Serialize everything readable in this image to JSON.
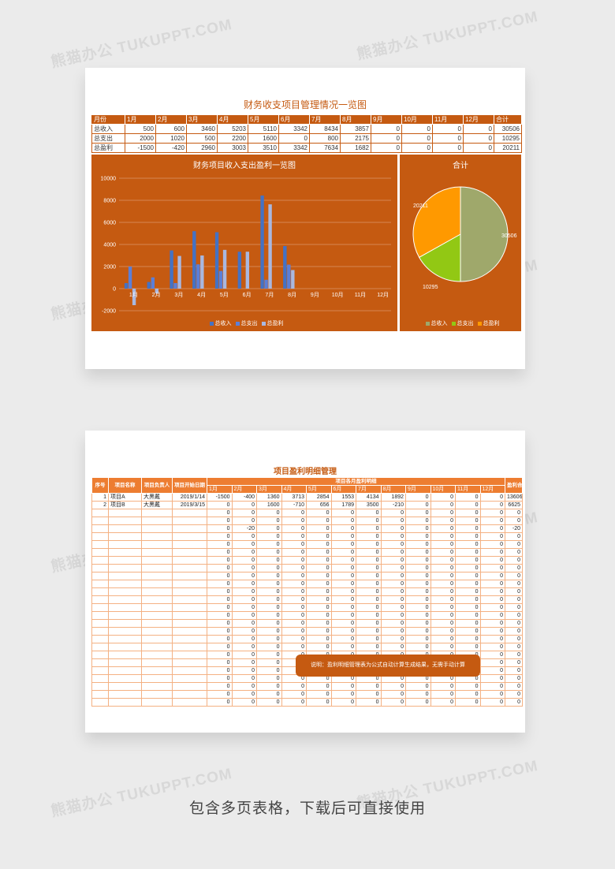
{
  "sheet1": {
    "title": "财务收支项目管理情况一览图",
    "header": [
      "月份",
      "1月",
      "2月",
      "3月",
      "4月",
      "5月",
      "6月",
      "7月",
      "8月",
      "9月",
      "10月",
      "11月",
      "12月",
      "合计"
    ],
    "rows": [
      {
        "label": "总收入",
        "values": [
          "500",
          "600",
          "3460",
          "5203",
          "5110",
          "3342",
          "8434",
          "3857",
          "0",
          "0",
          "0",
          "0",
          "30506"
        ]
      },
      {
        "label": "总支出",
        "values": [
          "2000",
          "1020",
          "500",
          "2200",
          "1600",
          "0",
          "800",
          "2175",
          "0",
          "0",
          "0",
          "0",
          "10295"
        ]
      },
      {
        "label": "总盈利",
        "values": [
          "-1500",
          "-420",
          "2960",
          "3003",
          "3510",
          "3342",
          "7634",
          "1682",
          "0",
          "0",
          "0",
          "0",
          "20211"
        ]
      }
    ]
  },
  "chart_data": [
    {
      "type": "bar",
      "title": "财务项目收入支出盈利一览图",
      "categories": [
        "1月",
        "2月",
        "3月",
        "4月",
        "5月",
        "6月",
        "7月",
        "8月",
        "9月",
        "10月",
        "11月",
        "12月"
      ],
      "series": [
        {
          "name": "总收入",
          "values": [
            500,
            600,
            3460,
            5203,
            5110,
            3342,
            8434,
            3857,
            0,
            0,
            0,
            0
          ],
          "color": "#4472c4"
        },
        {
          "name": "总支出",
          "values": [
            2000,
            1020,
            500,
            2200,
            1600,
            0,
            800,
            2175,
            0,
            0,
            0,
            0
          ],
          "color": "#5b7fd8"
        },
        {
          "name": "总盈利",
          "values": [
            -1500,
            -420,
            2960,
            3003,
            3510,
            3342,
            7634,
            1682,
            0,
            0,
            0,
            0
          ],
          "color": "#a9b8e0"
        }
      ],
      "ylim": [
        -2000,
        10000
      ],
      "yticks": [
        "10000",
        "8000",
        "6000",
        "4000",
        "2000",
        "0",
        "-2000"
      ],
      "grid": true,
      "legend": "bottom"
    },
    {
      "type": "pie",
      "title": "合计",
      "labels": [
        "总收入",
        "总支出",
        "总盈利"
      ],
      "values": [
        30506,
        10295,
        20211
      ],
      "data_labels": [
        "30506",
        "10295",
        "20211"
      ],
      "colors": [
        "#9fa86b",
        "#92c814",
        "#ff9900"
      ],
      "legend": "bottom"
    }
  ],
  "sheet2": {
    "title": "项目盈利明细管理",
    "col_no": "序号",
    "col_name": "项目名称",
    "col_owner": "项目负责人",
    "col_start": "项目开始日期",
    "monthly_group": "项目各月盈利明细",
    "col_total": "盈利合计",
    "months": [
      "1月",
      "2月",
      "3月",
      "4月",
      "5月",
      "6月",
      "7月",
      "8月",
      "9月",
      "10月",
      "11月",
      "12月"
    ],
    "rows": [
      {
        "no": "1",
        "name": "项目A",
        "owner": "大黑戴",
        "date": "2019/1/14",
        "m": [
          "-1500",
          "-400",
          "1360",
          "3713",
          "2854",
          "1553",
          "4134",
          "1892",
          "0",
          "0",
          "0",
          "0"
        ],
        "total": "13606"
      },
      {
        "no": "2",
        "name": "项目B",
        "owner": "大黑戴",
        "date": "2019/3/15",
        "m": [
          "0",
          "0",
          "1600",
          "-710",
          "656",
          "1789",
          "3500",
          "-210",
          "0",
          "0",
          "0",
          "0"
        ],
        "total": "6625"
      },
      {
        "no": "",
        "name": "",
        "owner": "",
        "date": "",
        "m": [
          "0",
          "0",
          "0",
          "0",
          "0",
          "0",
          "0",
          "0",
          "0",
          "0",
          "0",
          "0"
        ],
        "total": "0"
      },
      {
        "no": "",
        "name": "",
        "owner": "",
        "date": "",
        "m": [
          "0",
          "0",
          "0",
          "0",
          "0",
          "0",
          "0",
          "0",
          "0",
          "0",
          "0",
          "0"
        ],
        "total": "0"
      },
      {
        "no": "",
        "name": "",
        "owner": "",
        "date": "",
        "m": [
          "0",
          "-20",
          "0",
          "0",
          "0",
          "0",
          "0",
          "0",
          "0",
          "0",
          "0",
          "0"
        ],
        "total": "-20"
      },
      {
        "no": "",
        "name": "",
        "owner": "",
        "date": "",
        "m": [
          "0",
          "0",
          "0",
          "0",
          "0",
          "0",
          "0",
          "0",
          "0",
          "0",
          "0",
          "0"
        ],
        "total": "0"
      },
      {
        "no": "",
        "name": "",
        "owner": "",
        "date": "",
        "m": [
          "0",
          "0",
          "0",
          "0",
          "0",
          "0",
          "0",
          "0",
          "0",
          "0",
          "0",
          "0"
        ],
        "total": "0"
      },
      {
        "no": "",
        "name": "",
        "owner": "",
        "date": "",
        "m": [
          "0",
          "0",
          "0",
          "0",
          "0",
          "0",
          "0",
          "0",
          "0",
          "0",
          "0",
          "0"
        ],
        "total": "0"
      },
      {
        "no": "",
        "name": "",
        "owner": "",
        "date": "",
        "m": [
          "0",
          "0",
          "0",
          "0",
          "0",
          "0",
          "0",
          "0",
          "0",
          "0",
          "0",
          "0"
        ],
        "total": "0"
      },
      {
        "no": "",
        "name": "",
        "owner": "",
        "date": "",
        "m": [
          "0",
          "0",
          "0",
          "0",
          "0",
          "0",
          "0",
          "0",
          "0",
          "0",
          "0",
          "0"
        ],
        "total": "0"
      },
      {
        "no": "",
        "name": "",
        "owner": "",
        "date": "",
        "m": [
          "0",
          "0",
          "0",
          "0",
          "0",
          "0",
          "0",
          "0",
          "0",
          "0",
          "0",
          "0"
        ],
        "total": "0"
      },
      {
        "no": "",
        "name": "",
        "owner": "",
        "date": "",
        "m": [
          "0",
          "0",
          "0",
          "0",
          "0",
          "0",
          "0",
          "0",
          "0",
          "0",
          "0",
          "0"
        ],
        "total": "0"
      },
      {
        "no": "",
        "name": "",
        "owner": "",
        "date": "",
        "m": [
          "0",
          "0",
          "0",
          "0",
          "0",
          "0",
          "0",
          "0",
          "0",
          "0",
          "0",
          "0"
        ],
        "total": "0"
      },
      {
        "no": "",
        "name": "",
        "owner": "",
        "date": "",
        "m": [
          "0",
          "0",
          "0",
          "0",
          "0",
          "0",
          "0",
          "0",
          "0",
          "0",
          "0",
          "0"
        ],
        "total": "0"
      },
      {
        "no": "",
        "name": "",
        "owner": "",
        "date": "",
        "m": [
          "0",
          "0",
          "0",
          "0",
          "0",
          "0",
          "0",
          "0",
          "0",
          "0",
          "0",
          "0"
        ],
        "total": "0"
      },
      {
        "no": "",
        "name": "",
        "owner": "",
        "date": "",
        "m": [
          "0",
          "0",
          "0",
          "0",
          "0",
          "0",
          "0",
          "0",
          "0",
          "0",
          "0",
          "0"
        ],
        "total": "0"
      },
      {
        "no": "",
        "name": "",
        "owner": "",
        "date": "",
        "m": [
          "0",
          "0",
          "0",
          "0",
          "0",
          "0",
          "0",
          "0",
          "0",
          "0",
          "0",
          "0"
        ],
        "total": "0"
      },
      {
        "no": "",
        "name": "",
        "owner": "",
        "date": "",
        "m": [
          "0",
          "0",
          "0",
          "0",
          "0",
          "0",
          "0",
          "0",
          "0",
          "0",
          "0",
          "0"
        ],
        "total": "0"
      },
      {
        "no": "",
        "name": "",
        "owner": "",
        "date": "",
        "m": [
          "0",
          "0",
          "0",
          "0",
          "0",
          "0",
          "0",
          "0",
          "0",
          "0",
          "0",
          "0"
        ],
        "total": "0"
      },
      {
        "no": "",
        "name": "",
        "owner": "",
        "date": "",
        "m": [
          "0",
          "0",
          "0",
          "0",
          "0",
          "0",
          "0",
          "0",
          "0",
          "0",
          "0",
          "0"
        ],
        "total": "0"
      },
      {
        "no": "",
        "name": "",
        "owner": "",
        "date": "",
        "m": [
          "0",
          "0",
          "0",
          "0",
          "0",
          "0",
          "0",
          "0",
          "0",
          "0",
          "0",
          "0"
        ],
        "total": "0"
      },
      {
        "no": "",
        "name": "",
        "owner": "",
        "date": "",
        "m": [
          "0",
          "0",
          "0",
          "0",
          "0",
          "0",
          "0",
          "0",
          "0",
          "0",
          "0",
          "0"
        ],
        "total": "0"
      },
      {
        "no": "",
        "name": "",
        "owner": "",
        "date": "",
        "m": [
          "0",
          "0",
          "0",
          "0",
          "0",
          "0",
          "0",
          "0",
          "0",
          "0",
          "0",
          "0"
        ],
        "total": "0"
      },
      {
        "no": "",
        "name": "",
        "owner": "",
        "date": "",
        "m": [
          "0",
          "0",
          "0",
          "0",
          "0",
          "0",
          "0",
          "0",
          "0",
          "0",
          "0",
          "0"
        ],
        "total": "0"
      },
      {
        "no": "",
        "name": "",
        "owner": "",
        "date": "",
        "m": [
          "0",
          "0",
          "0",
          "0",
          "0",
          "0",
          "0",
          "0",
          "0",
          "0",
          "0",
          "0"
        ],
        "total": "0"
      },
      {
        "no": "",
        "name": "",
        "owner": "",
        "date": "",
        "m": [
          "0",
          "0",
          "0",
          "0",
          "0",
          "0",
          "0",
          "0",
          "0",
          "0",
          "0",
          "0"
        ],
        "total": "0"
      },
      {
        "no": "",
        "name": "",
        "owner": "",
        "date": "",
        "m": [
          "0",
          "0",
          "0",
          "0",
          "0",
          "0",
          "0",
          "0",
          "0",
          "0",
          "0",
          "0"
        ],
        "total": "0"
      }
    ],
    "note": "说明：盈利明细管理表为公式自动计算生成结果，无需手动计算"
  },
  "caption": "包含多页表格，下载后可直接使用",
  "watermark": "熊猫办公 TUKUPPT.COM"
}
